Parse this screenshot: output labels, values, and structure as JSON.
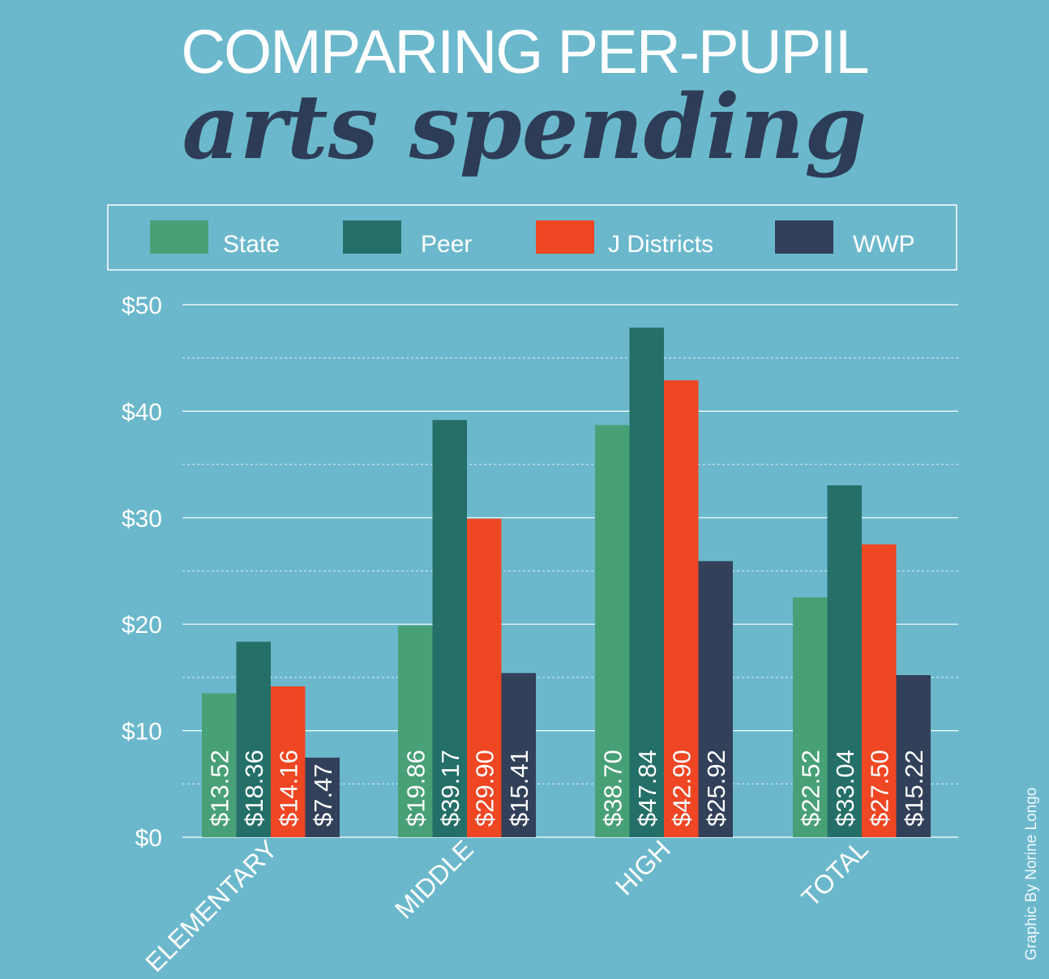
{
  "chart_data": {
    "type": "bar",
    "title": "COMPARING PER-PUPIL",
    "subtitle": "arts spending",
    "categories": [
      "ELEMENTARY",
      "MIDDLE",
      "HIGH",
      "TOTAL"
    ],
    "series": [
      {
        "name": "State",
        "color": "#48A077",
        "values": [
          13.52,
          19.86,
          38.7,
          22.52
        ],
        "labels": [
          "$13.52",
          "$19.86",
          "$38.70",
          "$22.52"
        ]
      },
      {
        "name": "Peer",
        "color": "#246F68",
        "values": [
          18.36,
          39.17,
          47.84,
          33.04
        ],
        "labels": [
          "$18.36",
          "$39.17",
          "$47.84",
          "$33.04"
        ]
      },
      {
        "name": "J Districts",
        "color": "#EF4623",
        "values": [
          14.16,
          29.9,
          42.9,
          27.5
        ],
        "labels": [
          "$14.16",
          "$29.90",
          "$42.90",
          "$27.50"
        ]
      },
      {
        "name": "WWP",
        "color": "#32405A",
        "values": [
          7.47,
          15.41,
          25.92,
          15.22
        ],
        "labels": [
          "$7.47",
          "$15.41",
          "$25.92",
          "$15.22"
        ]
      }
    ],
    "ylim": [
      0,
      50
    ],
    "yticks": [
      0,
      10,
      20,
      30,
      40,
      50
    ],
    "ytick_labels": [
      "$0",
      "$10",
      "$20",
      "$30",
      "$40",
      "$50"
    ],
    "grid": true,
    "legend_position": "top",
    "background_color": "#6BB8CC"
  },
  "credit": "Graphic By Norine Longo"
}
